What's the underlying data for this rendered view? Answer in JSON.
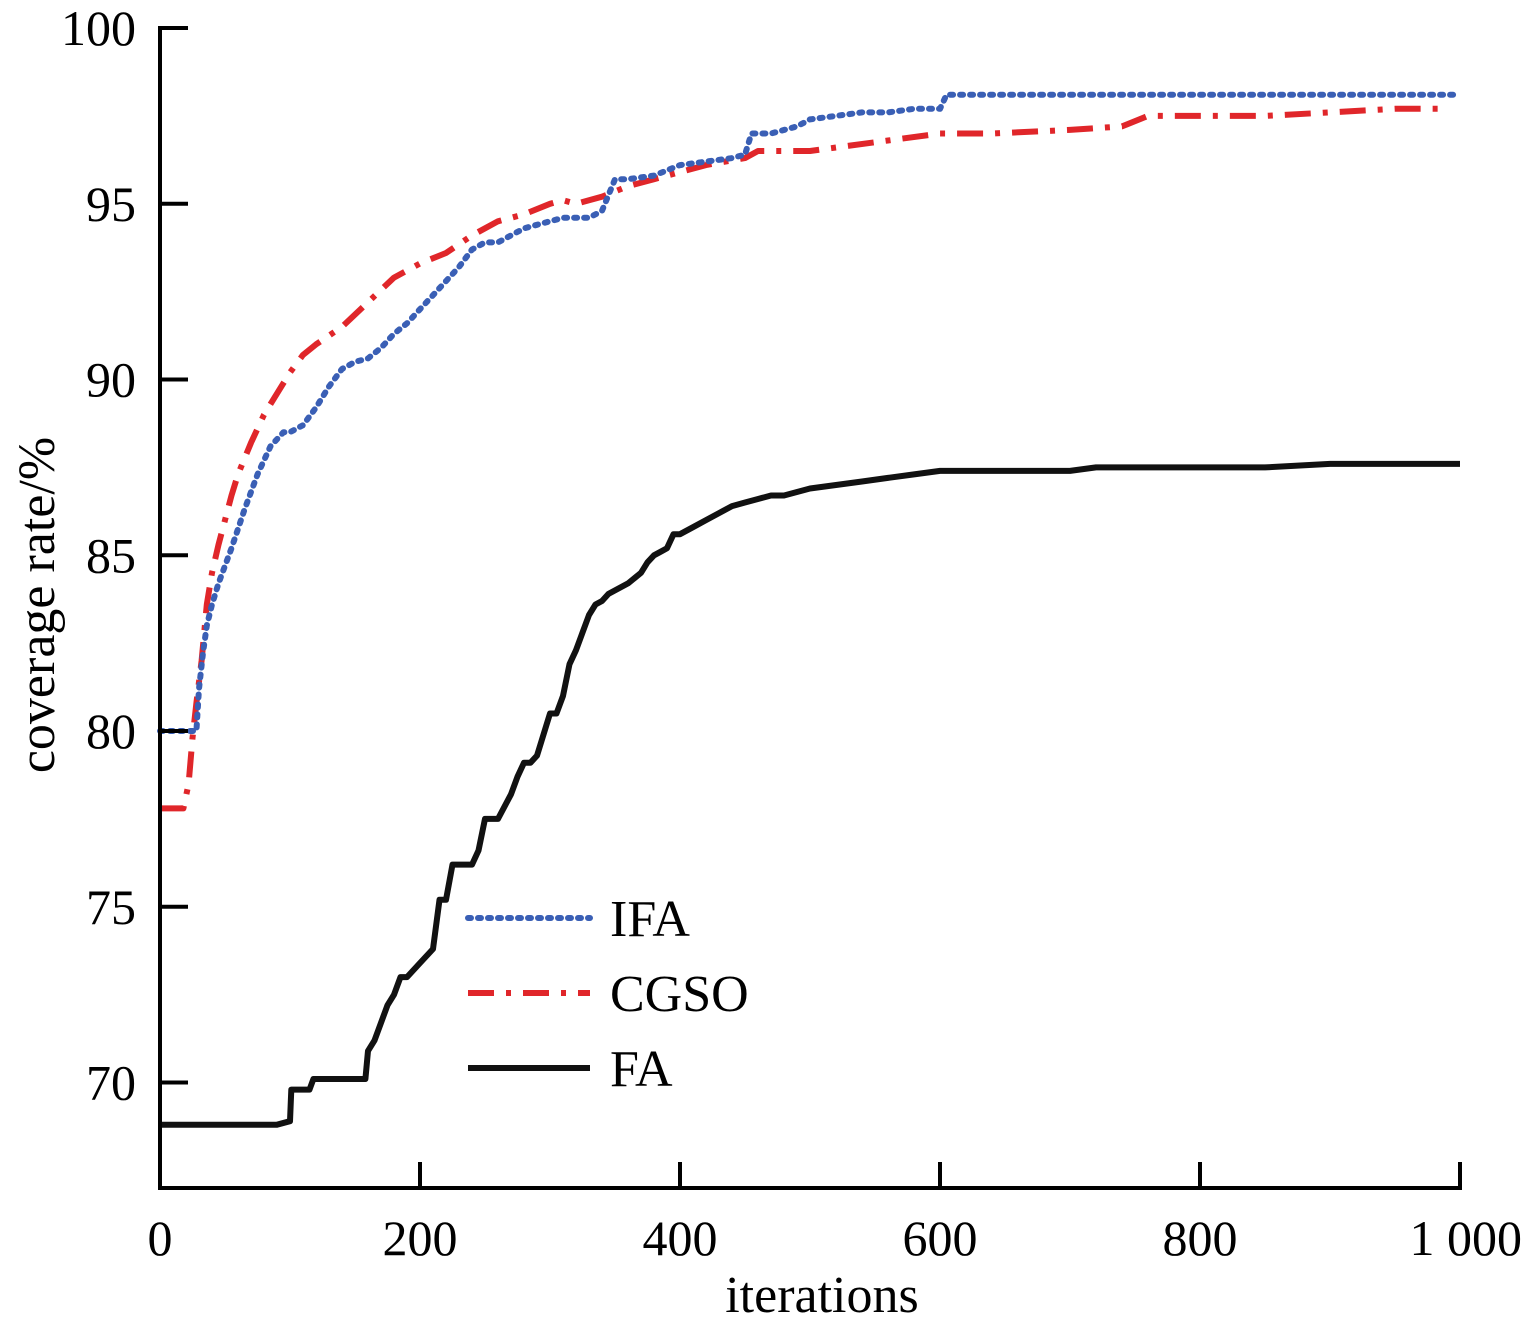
{
  "chart_data": {
    "type": "line",
    "xlabel": "iterations",
    "ylabel": "coverage rate/%",
    "xlim": [
      0,
      1000
    ],
    "ylim": [
      67,
      100
    ],
    "x_ticks": [
      0,
      200,
      400,
      600,
      800,
      1000
    ],
    "x_tick_labels": [
      "0",
      "200",
      "400",
      "600",
      "800",
      "1 000"
    ],
    "y_ticks": [
      70,
      75,
      80,
      85,
      90,
      95,
      100
    ],
    "y_tick_labels": [
      "70",
      "75",
      "80",
      "85",
      "90",
      "95",
      "100"
    ],
    "grid": false,
    "legend_position": "lower-center",
    "series": [
      {
        "name": "IFA",
        "color": "#3a5fb5",
        "style": "dotted",
        "x": [
          0,
          5,
          10,
          20,
          28,
          30,
          33,
          36,
          40,
          45,
          55,
          65,
          75,
          85,
          95,
          100,
          110,
          120,
          130,
          140,
          150,
          160,
          170,
          180,
          190,
          200,
          210,
          220,
          230,
          240,
          250,
          260,
          270,
          280,
          290,
          300,
          310,
          320,
          330,
          340,
          350,
          360,
          380,
          400,
          420,
          440,
          450,
          455,
          470,
          490,
          500,
          520,
          540,
          560,
          580,
          600,
          605,
          640,
          700,
          800,
          900,
          1000
        ],
        "y": [
          80.0,
          80.0,
          80.0,
          80.0,
          80.0,
          81.2,
          82.2,
          83.0,
          83.6,
          84.2,
          85.2,
          86.3,
          87.3,
          88.1,
          88.5,
          88.5,
          88.7,
          89.2,
          89.8,
          90.3,
          90.5,
          90.6,
          90.9,
          91.3,
          91.6,
          92.0,
          92.4,
          92.8,
          93.2,
          93.7,
          93.9,
          93.9,
          94.1,
          94.3,
          94.4,
          94.5,
          94.6,
          94.6,
          94.6,
          94.8,
          95.7,
          95.7,
          95.8,
          96.1,
          96.2,
          96.3,
          96.4,
          97.0,
          97.0,
          97.2,
          97.4,
          97.5,
          97.6,
          97.6,
          97.7,
          97.7,
          98.1,
          98.1,
          98.1,
          98.1,
          98.1,
          98.1
        ]
      },
      {
        "name": "CGSO",
        "color": "#e0262a",
        "style": "dashdot",
        "x": [
          0,
          18,
          22,
          25,
          28,
          32,
          36,
          40,
          45,
          50,
          55,
          60,
          70,
          80,
          90,
          100,
          110,
          120,
          140,
          160,
          180,
          200,
          220,
          240,
          260,
          280,
          300,
          310,
          320,
          340,
          360,
          380,
          400,
          420,
          450,
          460,
          500,
          520,
          560,
          600,
          640,
          700,
          740,
          760,
          800,
          850,
          900,
          950,
          990
        ],
        "y": [
          77.8,
          77.8,
          78.5,
          79.8,
          80.8,
          82.0,
          83.6,
          84.5,
          85.3,
          86.0,
          86.7,
          87.3,
          88.2,
          89.0,
          89.6,
          90.2,
          90.7,
          91.0,
          91.5,
          92.2,
          92.9,
          93.3,
          93.6,
          94.1,
          94.5,
          94.7,
          95.0,
          95.1,
          95.0,
          95.2,
          95.5,
          95.7,
          95.9,
          96.1,
          96.3,
          96.5,
          96.5,
          96.6,
          96.8,
          97.0,
          97.0,
          97.1,
          97.2,
          97.5,
          97.5,
          97.5,
          97.6,
          97.7,
          97.7
        ]
      },
      {
        "name": "FA",
        "color": "#111111",
        "style": "solid",
        "x": [
          0,
          50,
          90,
          100,
          101,
          115,
          118,
          150,
          158,
          160,
          165,
          170,
          175,
          180,
          185,
          190,
          200,
          205,
          210,
          215,
          220,
          225,
          240,
          245,
          250,
          255,
          260,
          270,
          275,
          280,
          285,
          290,
          300,
          305,
          310,
          315,
          320,
          325,
          330,
          335,
          340,
          345,
          350,
          360,
          370,
          375,
          380,
          385,
          390,
          395,
          400,
          410,
          420,
          430,
          440,
          450,
          460,
          470,
          480,
          490,
          500,
          520,
          540,
          560,
          580,
          600,
          610,
          650,
          700,
          720,
          750,
          800,
          850,
          900,
          950,
          1000
        ],
        "y": [
          68.8,
          68.8,
          68.8,
          68.9,
          69.8,
          69.8,
          70.1,
          70.1,
          70.1,
          70.9,
          71.2,
          71.7,
          72.2,
          72.5,
          73.0,
          73.0,
          73.4,
          73.6,
          73.8,
          75.2,
          75.2,
          76.2,
          76.2,
          76.6,
          77.5,
          77.5,
          77.5,
          78.2,
          78.7,
          79.1,
          79.1,
          79.3,
          80.5,
          80.5,
          81.0,
          81.9,
          82.3,
          82.8,
          83.3,
          83.6,
          83.7,
          83.9,
          84.0,
          84.2,
          84.5,
          84.8,
          85.0,
          85.1,
          85.2,
          85.6,
          85.6,
          85.8,
          86.0,
          86.2,
          86.4,
          86.5,
          86.6,
          86.7,
          86.7,
          86.8,
          86.9,
          87.0,
          87.1,
          87.2,
          87.3,
          87.4,
          87.4,
          87.4,
          87.4,
          87.5,
          87.5,
          87.5,
          87.5,
          87.6,
          87.6,
          87.6
        ]
      }
    ]
  }
}
